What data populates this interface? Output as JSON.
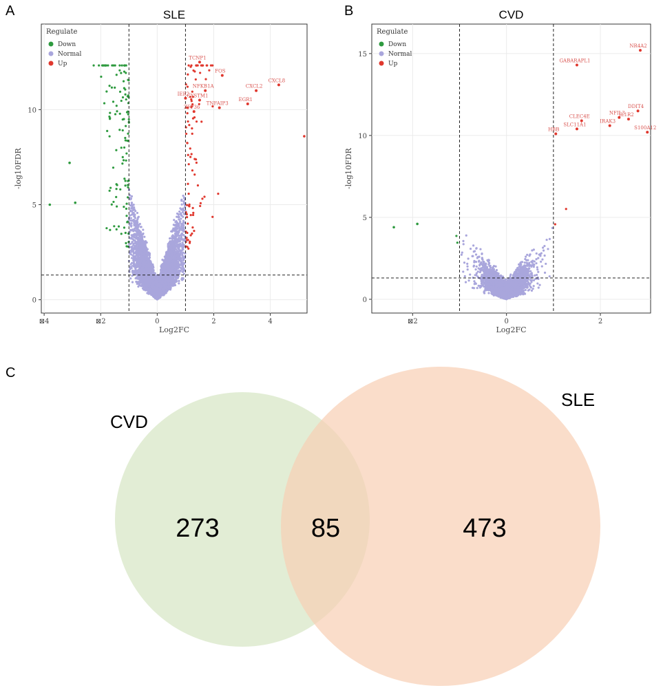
{
  "chart_data": [
    {
      "panel": "A",
      "type": "scatter",
      "title": "SLE",
      "xlabel": "Log2FC",
      "ylabel": "-log10FDR",
      "xlim": [
        -4.1,
        5.3
      ],
      "ylim": [
        -0.7,
        14.5
      ],
      "xticks": [
        "⊠4",
        "⊠2",
        "0",
        "2",
        "4"
      ],
      "xtick_values": [
        -4,
        -2,
        0,
        2,
        4
      ],
      "yticks": [
        "0",
        "5",
        "10"
      ],
      "ytick_values": [
        0,
        5,
        10
      ],
      "grid": true,
      "thresholds": {
        "log2fc": [
          -1,
          1
        ],
        "neg_log10_fdr": 1.3
      },
      "legend": {
        "title": "Regulate",
        "placement": "top-left",
        "entries": [
          "Down",
          "Normal",
          "Up"
        ]
      },
      "colors": {
        "Down": "#2e9a3f",
        "Normal": "#a9a6dc",
        "Up": "#e0382e"
      },
      "labeled_points": [
        {
          "label": "TCNP1",
          "x": 1.5,
          "y": 12.5
        },
        {
          "label": "FOS",
          "x": 2.3,
          "y": 11.8
        },
        {
          "label": "NFKB1A",
          "x": 1.7,
          "y": 11.0
        },
        {
          "label": "CXCL2",
          "x": 3.5,
          "y": 11.0
        },
        {
          "label": "CXCL8",
          "x": 4.3,
          "y": 11.3
        },
        {
          "label": "CYSTM1",
          "x": 1.5,
          "y": 10.5
        },
        {
          "label": "IER2",
          "x": 1.0,
          "y": 10.6
        },
        {
          "label": "EGR1",
          "x": 3.2,
          "y": 10.3
        },
        {
          "label": "TNFAIP3",
          "x": 2.2,
          "y": 10.1
        },
        {
          "label": "ZFP36",
          "x": 1.3,
          "y": 9.9
        }
      ],
      "outliers": [
        {
          "x": 5.2,
          "y": 8.6
        },
        {
          "x": -3.8,
          "y": 5.0
        },
        {
          "x": -3.1,
          "y": 7.2
        },
        {
          "x": -2.9,
          "y": 5.1
        }
      ]
    },
    {
      "panel": "B",
      "type": "scatter",
      "title": "CVD",
      "xlabel": "Log2FC",
      "ylabel": "-log10FDR",
      "xlim": [
        -2.87,
        3.07
      ],
      "ylim": [
        -0.84,
        16.8
      ],
      "xticks": [
        "⊠2",
        "0",
        "2"
      ],
      "xtick_values": [
        -2,
        0,
        2
      ],
      "yticks": [
        "0",
        "5",
        "10",
        "15"
      ],
      "ytick_values": [
        0,
        5,
        10,
        15
      ],
      "grid": true,
      "thresholds": {
        "log2fc": [
          -1,
          1
        ],
        "neg_log10_fdr": 1.3
      },
      "legend": {
        "title": "Regulate",
        "placement": "top-left",
        "entries": [
          "Down",
          "Normal",
          "Up"
        ]
      },
      "colors": {
        "Down": "#2e9a3f",
        "Normal": "#a9a6dc",
        "Up": "#e0382e"
      },
      "labeled_points": [
        {
          "label": "NR4A2",
          "x": 2.85,
          "y": 15.2
        },
        {
          "label": "GABARAPL1",
          "x": 1.5,
          "y": 14.3
        },
        {
          "label": "DDIT4",
          "x": 2.8,
          "y": 11.5
        },
        {
          "label": "CLEC4E",
          "x": 1.6,
          "y": 10.9
        },
        {
          "label": "NFIL3",
          "x": 2.4,
          "y": 11.1
        },
        {
          "label": "IRAK3",
          "x": 2.2,
          "y": 10.6
        },
        {
          "label": "IL1R2",
          "x": 2.6,
          "y": 11.0
        },
        {
          "label": "SLC11A1",
          "x": 1.5,
          "y": 10.4
        },
        {
          "label": "HBB",
          "x": 1.05,
          "y": 10.1
        },
        {
          "label": "S100A12",
          "x": 3.0,
          "y": 10.2
        }
      ],
      "outliers": [
        {
          "x": -2.4,
          "y": 4.4
        },
        {
          "x": -1.9,
          "y": 4.6
        }
      ]
    },
    {
      "panel": "C",
      "type": "venn",
      "sets": [
        {
          "name": "CVD",
          "only": 273,
          "color": "#d5e5c3"
        },
        {
          "name": "SLE",
          "only": 473,
          "color": "#f8cfb3"
        }
      ],
      "intersection": 85
    }
  ],
  "panel_labels": [
    "A",
    "B",
    "C"
  ]
}
